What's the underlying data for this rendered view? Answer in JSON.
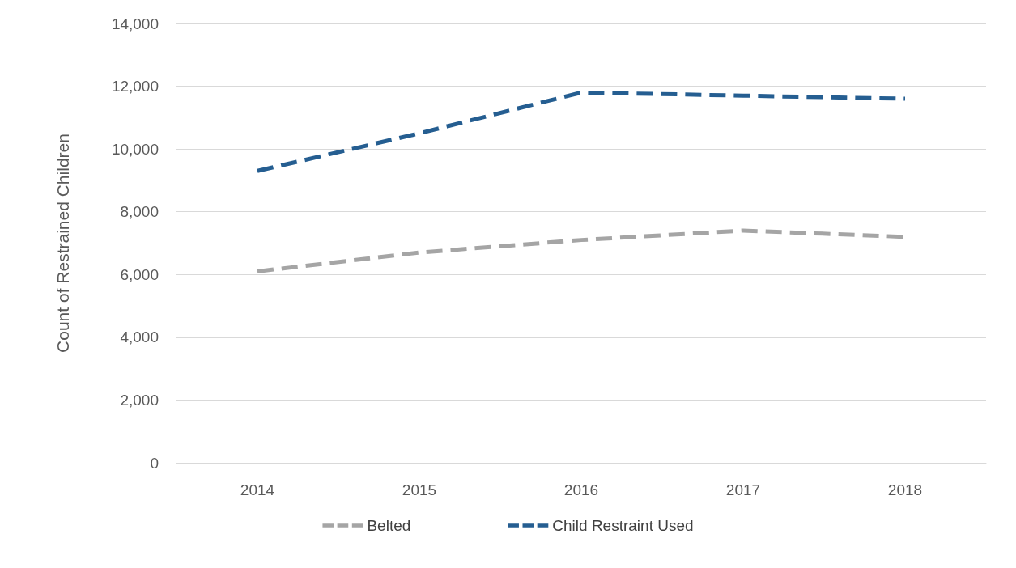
{
  "chart_data": {
    "type": "line",
    "ylabel": "Count of Restrained Children",
    "categories": [
      "2014",
      "2015",
      "2016",
      "2017",
      "2018"
    ],
    "series": [
      {
        "name": "Belted",
        "color": "#a5a5a5",
        "values": [
          6100,
          6700,
          7100,
          7400,
          7200
        ]
      },
      {
        "name": "Child Restraint Used",
        "color": "#255e91",
        "values": [
          9300,
          10500,
          11800,
          11700,
          11600
        ]
      }
    ],
    "ylim": [
      0,
      14000
    ],
    "yticks": [
      0,
      {
        "value": 2000,
        "label": "2,000"
      },
      {
        "value": 4000,
        "label": "4,000"
      },
      {
        "value": 6000,
        "label": "6,000"
      },
      {
        "value": 8000,
        "label": "8,000"
      },
      {
        "value": 10000,
        "label": "10,000"
      },
      {
        "value": 12000,
        "label": "12,000"
      },
      {
        "value": 14000,
        "label": "14,000"
      }
    ],
    "grid": "y",
    "legend": "bottom",
    "marker": "none",
    "line_style": "dashed"
  }
}
